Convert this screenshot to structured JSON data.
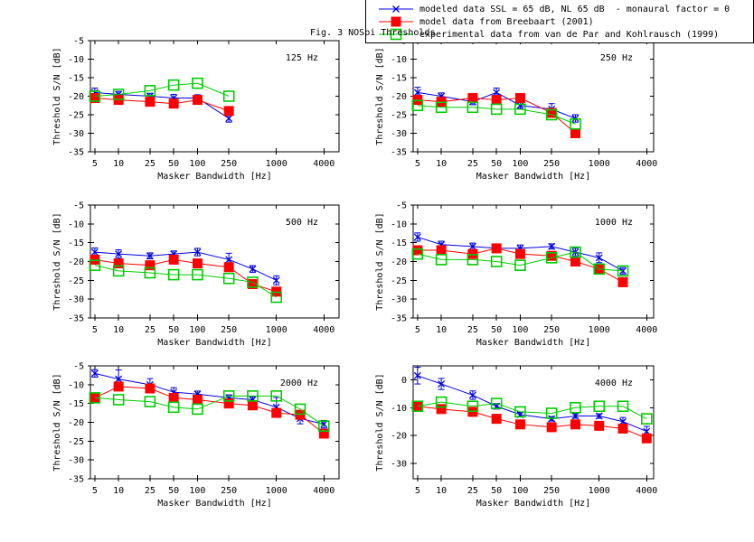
{
  "title": "Fig. 3 NOSpi Thresholds",
  "legend": {
    "entries": [
      {
        "key": "modeled",
        "label": "modeled data SSL = 65 dB, NL 65 dB  - monaural factor = 0",
        "color": "#0000e0",
        "marker": "x-errorbar"
      },
      {
        "key": "breebaart",
        "label": "model data from Breebaart (2001)",
        "color": "#ff0000",
        "marker": "filled-square"
      },
      {
        "key": "experimental",
        "label": "experimental data from van de Par and Kohlrausch (1999)",
        "color": "#00cc00",
        "marker": "open-square"
      }
    ]
  },
  "axes": {
    "xlabel": "Masker Bandwidth [Hz]",
    "ylabel": "Threshold S/N [dB]",
    "xscale": "log",
    "xticks": [
      5,
      10,
      25,
      50,
      100,
      250,
      1000,
      4000
    ],
    "xrange": [
      4.4,
      6300
    ]
  },
  "chart_data": [
    {
      "type": "line",
      "label": "125 Hz",
      "x": [
        5,
        10,
        25,
        50,
        100,
        250
      ],
      "ylim": [
        -5,
        -35
      ],
      "yticks": [
        -5,
        -10,
        -15,
        -20,
        -25,
        -30,
        -35
      ],
      "series": [
        {
          "name": "modeled",
          "values": [
            -19,
            -19.5,
            -20,
            -20.5,
            -20.5,
            -26
          ],
          "err": [
            1.2,
            0.8,
            0.8,
            1.0,
            0.9,
            1.0
          ]
        },
        {
          "name": "breebaart",
          "values": [
            -20.5,
            -21,
            -21.5,
            -22,
            -21,
            -24
          ]
        },
        {
          "name": "experimental",
          "values": [
            -20,
            -19.5,
            -18.5,
            -17,
            -16.5,
            -20
          ]
        }
      ]
    },
    {
      "type": "line",
      "label": "250 Hz",
      "x": [
        5,
        10,
        25,
        50,
        100,
        250,
        500
      ],
      "ylim": [
        -5,
        -35
      ],
      "yticks": [
        -5,
        -10,
        -15,
        -20,
        -25,
        -30,
        -35
      ],
      "series": [
        {
          "name": "modeled",
          "values": [
            -19,
            -20,
            -21.5,
            -19,
            -22.5,
            -23.5,
            -26
          ],
          "err": [
            1.4,
            0.9,
            0.8,
            1.2,
            0.8,
            1.5,
            1.0
          ]
        },
        {
          "name": "breebaart",
          "values": [
            -21,
            -21.5,
            -20.5,
            -21,
            -20.5,
            -24.5,
            -30
          ]
        },
        {
          "name": "experimental",
          "values": [
            -22.5,
            -23,
            -23,
            -23.5,
            -23.5,
            -25,
            -27.5
          ]
        }
      ]
    },
    {
      "type": "line",
      "label": "500 Hz",
      "x": [
        5,
        10,
        25,
        50,
        100,
        250,
        500,
        1000
      ],
      "ylim": [
        -5,
        -35
      ],
      "yticks": [
        -5,
        -10,
        -15,
        -20,
        -25,
        -30,
        -35
      ],
      "series": [
        {
          "name": "modeled",
          "values": [
            -17.5,
            -18,
            -18.5,
            -18,
            -17.5,
            -19.5,
            -22,
            -25
          ],
          "err": [
            1.1,
            1.1,
            0.8,
            0.8,
            1.0,
            1.7,
            0.9,
            1.2
          ]
        },
        {
          "name": "breebaart",
          "values": [
            -19.5,
            -20.5,
            -21,
            -19.5,
            -20.5,
            -21.5,
            -26,
            -28
          ]
        },
        {
          "name": "experimental",
          "values": [
            -21,
            -22.5,
            -23,
            -23.5,
            -23.5,
            -24.5,
            -25.5,
            -29.5
          ]
        }
      ]
    },
    {
      "type": "line",
      "label": "1000 Hz",
      "x": [
        5,
        10,
        25,
        50,
        100,
        250,
        500,
        1000,
        2000
      ],
      "ylim": [
        -5,
        -35
      ],
      "yticks": [
        -5,
        -10,
        -15,
        -20,
        -25,
        -30,
        -35
      ],
      "series": [
        {
          "name": "modeled",
          "values": [
            -13.5,
            -15.5,
            -16,
            -16.5,
            -16.5,
            -16,
            -17.5,
            -19,
            -22.5
          ],
          "err": [
            1.1,
            0.9,
            0.9,
            0.7,
            0.9,
            0.7,
            1.0,
            1.3,
            0.9
          ]
        },
        {
          "name": "breebaart",
          "values": [
            -17,
            -17,
            -18,
            -16.5,
            -18,
            -18.5,
            -20,
            -22,
            -25.5
          ]
        },
        {
          "name": "experimental",
          "values": [
            -18,
            -19.5,
            -19.5,
            -20,
            -21,
            -19,
            -17.5,
            -22,
            -22.5
          ]
        }
      ]
    },
    {
      "type": "line",
      "label": "2000 Hz",
      "x": [
        5,
        10,
        25,
        50,
        100,
        250,
        500,
        1000,
        2000,
        4000
      ],
      "ylim": [
        -5,
        -35
      ],
      "yticks": [
        -5,
        -10,
        -15,
        -20,
        -25,
        -30,
        -35
      ],
      "series": [
        {
          "name": "modeled",
          "values": [
            -7,
            -8.5,
            -10,
            -12,
            -12.5,
            -13.5,
            -14,
            -16,
            -19,
            -20.5
          ],
          "err": [
            1.0,
            2.4,
            1.6,
            1.2,
            0.8,
            0.8,
            0.8,
            2.6,
            1.4,
            1.0
          ]
        },
        {
          "name": "breebaart",
          "values": [
            -13.5,
            -10.5,
            -11,
            -13.5,
            -14,
            -15,
            -15.5,
            -17.5,
            -18,
            -23
          ]
        },
        {
          "name": "experimental",
          "values": [
            -13.5,
            -14,
            -14.5,
            -16,
            -16.5,
            -13,
            -13,
            -13,
            -16.5,
            -21
          ]
        }
      ]
    },
    {
      "type": "line",
      "label": "4000 Hz",
      "x": [
        5,
        10,
        25,
        50,
        100,
        250,
        500,
        1000,
        2000,
        4000
      ],
      "ylim": [
        5,
        -35.5
      ],
      "yticks": [
        0,
        -10,
        -20,
        -30
      ],
      "series": [
        {
          "name": "modeled",
          "values": [
            1.5,
            -1.5,
            -5.5,
            -9.5,
            -12.5,
            -14,
            -13,
            -13,
            -15,
            -18.5
          ],
          "err": [
            3.0,
            2.0,
            1.5,
            1.0,
            0.8,
            0.8,
            0.8,
            0.8,
            1.5,
            1.8
          ]
        },
        {
          "name": "breebaart",
          "values": [
            -9.5,
            -10.5,
            -11.5,
            -14,
            -16,
            -17,
            -16,
            -16.5,
            -17.5,
            -21
          ]
        },
        {
          "name": "experimental",
          "values": [
            -9.5,
            -8,
            -9.5,
            -8.5,
            -11.5,
            -12,
            -10,
            -9.5,
            -9.5,
            -14
          ]
        }
      ]
    }
  ]
}
